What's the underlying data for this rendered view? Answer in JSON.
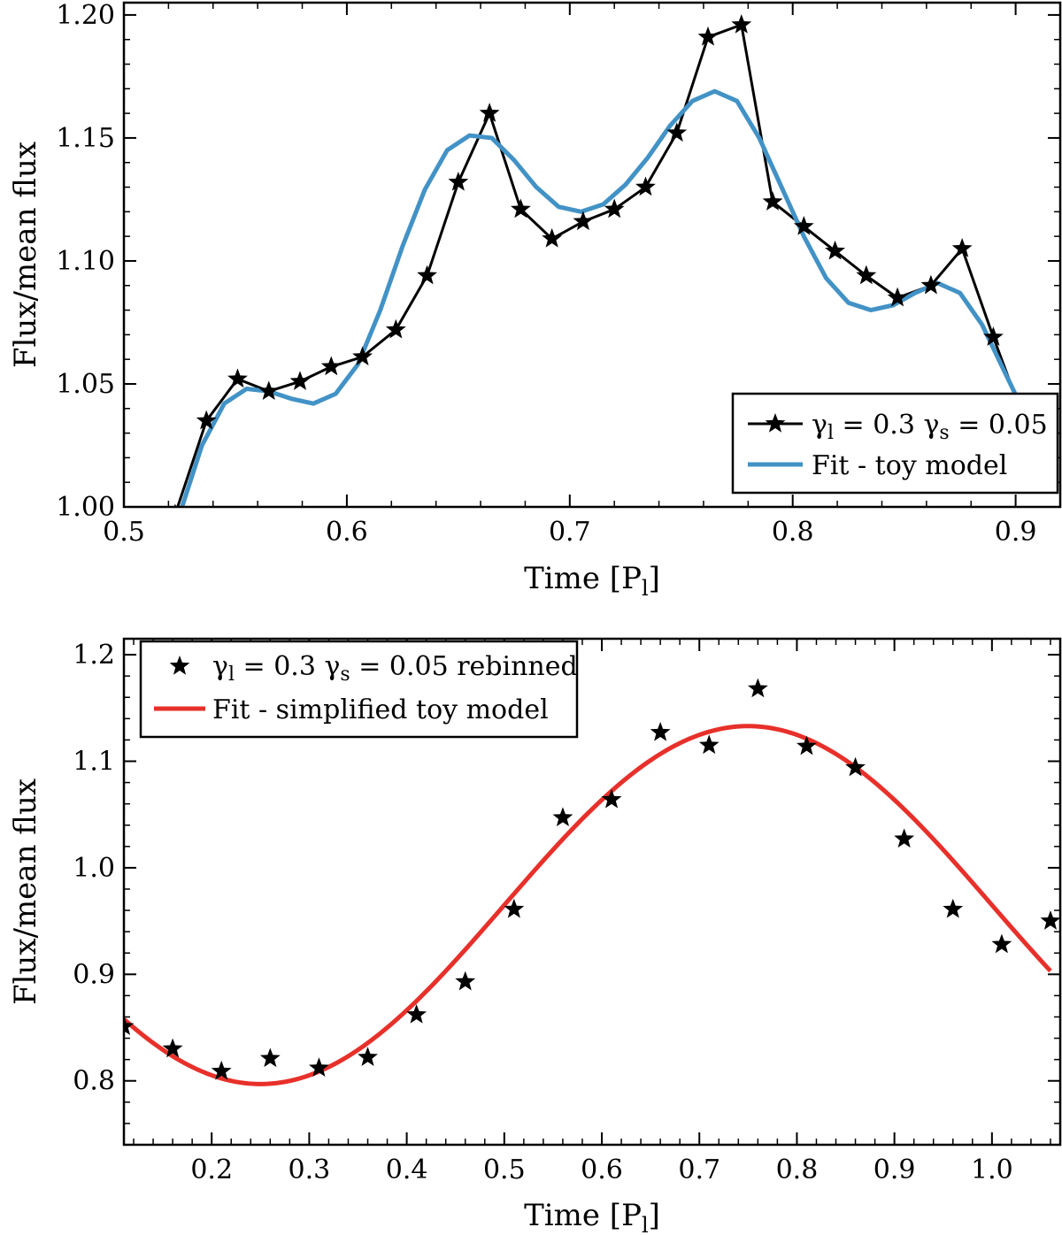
{
  "chart_data": [
    {
      "type": "line",
      "panel": "top",
      "xlabel": "Time [P",
      "xlabel_sub": "l",
      "xlabel_close": "]",
      "ylabel": "Flux/mean flux",
      "xlim": [
        0.5,
        0.92
      ],
      "ylim": [
        1.0,
        1.205
      ],
      "xticks": [
        "0.5",
        "0.6",
        "0.7",
        "0.8",
        "0.9"
      ],
      "yticks": [
        "1.00",
        "1.05",
        "1.10",
        "1.15",
        "1.20"
      ],
      "legend_position": "lower-right",
      "series": [
        {
          "name": "γl = 0.3 γs = 0.05",
          "legend_parts": [
            "γ",
            "l",
            " = 0.3 γ",
            "s",
            " = 0.05"
          ],
          "style": "line-with-star-markers",
          "color": "#000000",
          "x": [
            0.523,
            0.537,
            0.551,
            0.565,
            0.579,
            0.593,
            0.607,
            0.622,
            0.636,
            0.65,
            0.664,
            0.678,
            0.692,
            0.706,
            0.72,
            0.734,
            0.748,
            0.762,
            0.777,
            0.791,
            0.805,
            0.819,
            0.833,
            0.847,
            0.862,
            0.876,
            0.89,
            0.904
          ],
          "y": [
            0.997,
            1.035,
            1.052,
            1.047,
            1.051,
            1.057,
            1.061,
            1.072,
            1.094,
            1.132,
            1.16,
            1.121,
            1.109,
            1.116,
            1.121,
            1.13,
            1.152,
            1.191,
            1.196,
            1.124,
            1.114,
            1.104,
            1.094,
            1.085,
            1.09,
            1.105,
            1.069,
            1.035
          ]
        },
        {
          "name": "Fit - toy model",
          "style": "line",
          "color": "#4292c6",
          "x": [
            0.525,
            0.535,
            0.545,
            0.555,
            0.565,
            0.575,
            0.585,
            0.595,
            0.605,
            0.615,
            0.625,
            0.635,
            0.645,
            0.655,
            0.665,
            0.675,
            0.685,
            0.695,
            0.705,
            0.715,
            0.725,
            0.735,
            0.745,
            0.755,
            0.765,
            0.775,
            0.785,
            0.795,
            0.805,
            0.815,
            0.825,
            0.835,
            0.845,
            0.855,
            0.865,
            0.875,
            0.885,
            0.895,
            0.903
          ],
          "y": [
            0.997,
            1.025,
            1.042,
            1.048,
            1.047,
            1.044,
            1.042,
            1.046,
            1.058,
            1.08,
            1.106,
            1.129,
            1.145,
            1.151,
            1.15,
            1.141,
            1.13,
            1.122,
            1.12,
            1.123,
            1.131,
            1.142,
            1.155,
            1.165,
            1.169,
            1.165,
            1.15,
            1.13,
            1.11,
            1.093,
            1.083,
            1.08,
            1.082,
            1.087,
            1.091,
            1.087,
            1.074,
            1.055,
            1.04
          ]
        }
      ]
    },
    {
      "type": "scatter",
      "panel": "bottom",
      "xlabel": "Time [P",
      "xlabel_sub": "l",
      "xlabel_close": "]",
      "ylabel": "Flux/mean flux",
      "xlim": [
        0.11,
        1.07
      ],
      "ylim": [
        0.74,
        1.215
      ],
      "xticks": [
        "0.2",
        "0.3",
        "0.4",
        "0.5",
        "0.6",
        "0.7",
        "0.8",
        "0.9",
        "1.0"
      ],
      "yticks": [
        "0.8",
        "0.9",
        "1.0",
        "1.1",
        "1.2"
      ],
      "legend_position": "top-left",
      "series": [
        {
          "name": "γl = 0.3 γs = 0.05 rebinned",
          "legend_parts": [
            "γ",
            "l",
            " = 0.3 γ",
            "s",
            " = 0.05 rebinned"
          ],
          "style": "star-markers",
          "color": "#000000",
          "x": [
            0.11,
            0.16,
            0.21,
            0.26,
            0.31,
            0.36,
            0.41,
            0.46,
            0.51,
            0.56,
            0.61,
            0.66,
            0.71,
            0.76,
            0.81,
            0.86,
            0.91,
            0.96,
            1.01,
            1.06
          ],
          "y": [
            0.851,
            0.83,
            0.809,
            0.821,
            0.812,
            0.822,
            0.862,
            0.893,
            0.961,
            1.047,
            1.064,
            1.127,
            1.115,
            1.168,
            1.114,
            1.094,
            1.027,
            0.961,
            0.928,
            0.95
          ]
        },
        {
          "name": "Fit - simplified toy model",
          "style": "line",
          "color": "#e8302a",
          "model": "0.965 - 0.168*sin(2*pi*x)",
          "x_range": [
            0.11,
            1.06
          ]
        }
      ]
    }
  ]
}
